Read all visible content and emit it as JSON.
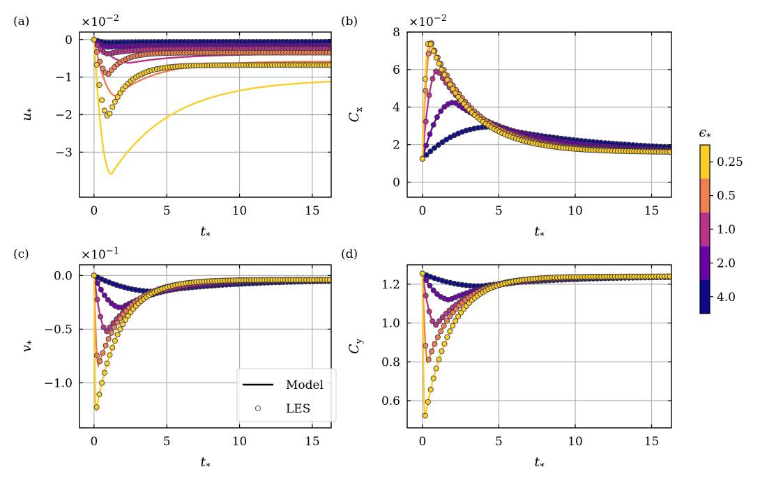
{
  "chart_data": {
    "colors": [
      "#fcce25",
      "#f07f4f",
      "#b83289",
      "#6a00a8",
      "#0d0887"
    ],
    "panels": [
      {
        "panel_label": "(a)",
        "type": "line",
        "ylabel": "u",
        "ylabel_sub": "*",
        "xlabel": "t",
        "xlabel_sub": "*",
        "multiplier": "×10",
        "multiplier_exp": "−2",
        "xlim": [
          -1.0,
          16.3
        ],
        "ylim": [
          -4.2,
          0.2
        ],
        "xticks": [
          0,
          5,
          10,
          15
        ],
        "xtick_labels": [
          "0",
          "5",
          "10",
          "15"
        ],
        "yticks": [
          0,
          -1,
          -2,
          -3
        ],
        "ytick_labels": [
          "0",
          "−1",
          "−2",
          "−3"
        ],
        "grid": true,
        "les_markers": true,
        "series": [
          {
            "t0": 0.16,
            "start": 0.0,
            "base": -1.15,
            "amp": -4.85,
            "tau": 1.2,
            "decay": 8.0,
            "tail": 0
          },
          {
            "t0": 0.3,
            "start": 0.0,
            "base": -0.9,
            "amp": -1.0,
            "tau": 1.0,
            "decay": 4.5,
            "tail": 0
          },
          {
            "t0": 0.5,
            "start": 0.0,
            "base": -0.6,
            "amp": -0.12,
            "tau": 0.8,
            "decay": 3.0,
            "tail": 0
          },
          {
            "t0": 0.7,
            "start": 0.0,
            "base": -0.27,
            "amp": -0.12,
            "tau": 0.8,
            "decay": 3.0,
            "tail": 0
          },
          {
            "t0": 1.0,
            "start": 0.0,
            "base": -0.05,
            "amp": -0.03,
            "tau": 1.0,
            "decay": 3.0,
            "tail": 0
          }
        ],
        "les": [
          {
            "base": -0.68,
            "dip": -2.05,
            "tdip": 1.0,
            "decay": 2.0
          },
          {
            "base": -0.35,
            "dip": -0.9,
            "tdip": 0.8,
            "decay": 1.2
          },
          {
            "base": -0.25,
            "dip": -0.38,
            "tdip": 0.9,
            "decay": 1.5
          },
          {
            "base": -0.17,
            "dip": -0.2,
            "tdip": 1.0,
            "decay": 1.5
          },
          {
            "base": -0.07,
            "dip": -0.08,
            "tdip": 1.0,
            "decay": 2.0
          }
        ]
      },
      {
        "panel_label": "(b)",
        "type": "line",
        "ylabel": "C",
        "ylabel_sub": "x",
        "xlabel": "t",
        "xlabel_sub": "*",
        "multiplier": "×10",
        "multiplier_exp": "−2",
        "xlim": [
          -1.0,
          16.3
        ],
        "ylim": [
          -0.8,
          8.0
        ],
        "xticks": [
          0,
          5,
          10,
          15
        ],
        "xtick_labels": [
          "0",
          "5",
          "10",
          "15"
        ],
        "yticks": [
          0,
          2,
          4,
          6,
          8
        ],
        "ytick_labels": [
          "0",
          "2",
          "4",
          "6",
          "8"
        ],
        "grid": true,
        "peaks": [
          {
            "tp": 0.45,
            "peak": 7.55
          },
          {
            "tp": 0.6,
            "peak": 7.4
          },
          {
            "tp": 1.0,
            "peak": 5.95
          },
          {
            "tp": 2.1,
            "peak": 4.25
          },
          {
            "tp": 4.6,
            "peak": 2.95
          }
        ],
        "start": 1.25,
        "end_value": 2.0
      },
      {
        "panel_label": "(c)",
        "type": "line",
        "ylabel": "v",
        "ylabel_sub": "*",
        "xlabel": "t",
        "xlabel_sub": "*",
        "multiplier": "×10",
        "multiplier_exp": "−1",
        "xlim": [
          -1.0,
          16.3
        ],
        "ylim": [
          -1.42,
          0.1
        ],
        "xticks": [
          0,
          5,
          10,
          15
        ],
        "xtick_labels": [
          "0",
          "5",
          "10",
          "15"
        ],
        "yticks": [
          0,
          -0.5,
          -1.0
        ],
        "ytick_labels": [
          "0.0",
          "−0.5",
          "−1.0"
        ],
        "grid": true,
        "dips": [
          {
            "tp": 0.12,
            "dip": -1.27
          },
          {
            "tp": 0.3,
            "dip": -0.84
          },
          {
            "tp": 0.9,
            "dip": -0.52
          },
          {
            "tp": 1.9,
            "dip": -0.3
          },
          {
            "tp": 4.3,
            "dip": -0.15
          }
        ],
        "end_value": -0.065
      },
      {
        "panel_label": "(d)",
        "type": "line",
        "ylabel": "C",
        "ylabel_sub": "y",
        "xlabel": "t",
        "xlabel_sub": "*",
        "xlim": [
          -1.0,
          16.3
        ],
        "ylim": [
          0.46,
          1.3
        ],
        "xticks": [
          0,
          5,
          10,
          15
        ],
        "xtick_labels": [
          "0",
          "5",
          "10",
          "15"
        ],
        "yticks": [
          0.6,
          0.8,
          1.0,
          1.2
        ],
        "ytick_labels": [
          "0.6",
          "0.8",
          "1.0",
          "1.2"
        ],
        "grid": true,
        "dips": [
          {
            "tp": 0.15,
            "dip": 0.51
          },
          {
            "tp": 0.35,
            "dip": 0.8
          },
          {
            "tp": 0.9,
            "dip": 0.99
          },
          {
            "tp": 1.8,
            "dip": 1.12
          },
          {
            "tp": 3.8,
            "dip": 1.19
          }
        ],
        "start": 1.255,
        "end_value": 1.23
      }
    ],
    "legend": {
      "placement": "lower-right of panel (c)",
      "entries": [
        {
          "label": "Model",
          "marker": "line"
        },
        {
          "label": "LES",
          "marker": "circle"
        }
      ]
    },
    "colorbar": {
      "title": "ϵ",
      "title_sub": "*",
      "labels": [
        "0.25",
        "0.5",
        "1.0",
        "2.0",
        "4.0"
      ]
    }
  }
}
